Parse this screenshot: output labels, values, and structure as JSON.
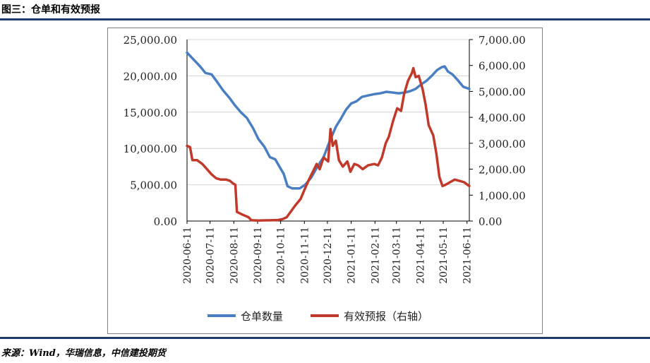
{
  "figure": {
    "title": "图三：仓单和有效预报",
    "source": "来源：Wind，华瑞信息，中信建投期货"
  },
  "colors": {
    "series1": "#4a7ec2",
    "series2": "#c0392b",
    "rule": "#1f3b6e"
  },
  "chart_data": {
    "type": "line",
    "title": "",
    "left_axis": {
      "ylim": [
        0,
        25000
      ],
      "ticks": [
        "0.00",
        "5,000.00",
        "10,000.00",
        "15,000.00",
        "20,000.00",
        "25,000.00"
      ]
    },
    "right_axis": {
      "ylim": [
        0,
        7000
      ],
      "ticks": [
        "0.00",
        "1,000.00",
        "2,000.00",
        "3,000.00",
        "4,000.00",
        "5,000.00",
        "6,000.00",
        "7,000.00"
      ]
    },
    "x_range": [
      "2020-06-11",
      "2021-06-14"
    ],
    "x_ticks": [
      "2020-06-11",
      "2020-07-11",
      "2020-08-11",
      "2020-09-11",
      "2020-10-11",
      "2020-11-11",
      "2020-12-11",
      "2021-01-11",
      "2021-02-11",
      "2021-03-11",
      "2021-04-11",
      "2021-05-11",
      "2021-06-11"
    ],
    "grid": true,
    "legend_position": "bottom",
    "series": [
      {
        "name": "仓单数量",
        "axis": "left",
        "points": [
          [
            "2020-06-11",
            23200
          ],
          [
            "2020-06-20",
            22200
          ],
          [
            "2020-06-28",
            21300
          ],
          [
            "2020-07-05",
            20400
          ],
          [
            "2020-07-13",
            20200
          ],
          [
            "2020-07-20",
            19200
          ],
          [
            "2020-07-28",
            18000
          ],
          [
            "2020-08-05",
            17000
          ],
          [
            "2020-08-12",
            16000
          ],
          [
            "2020-08-20",
            15000
          ],
          [
            "2020-08-28",
            14200
          ],
          [
            "2020-09-05",
            12800
          ],
          [
            "2020-09-12",
            11300
          ],
          [
            "2020-09-20",
            10200
          ],
          [
            "2020-09-27",
            8800
          ],
          [
            "2020-10-04",
            8500
          ],
          [
            "2020-10-10",
            7400
          ],
          [
            "2020-10-15",
            6500
          ],
          [
            "2020-10-20",
            4800
          ],
          [
            "2020-10-26",
            4500
          ],
          [
            "2020-11-05",
            4500
          ],
          [
            "2020-11-12",
            5000
          ],
          [
            "2020-11-20",
            6000
          ],
          [
            "2020-11-28",
            7500
          ],
          [
            "2020-12-06",
            8800
          ],
          [
            "2020-12-14",
            11000
          ],
          [
            "2020-12-22",
            13000
          ],
          [
            "2020-12-28",
            14000
          ],
          [
            "2021-01-04",
            15300
          ],
          [
            "2021-01-11",
            16200
          ],
          [
            "2021-01-18",
            16500
          ],
          [
            "2021-01-25",
            17100
          ],
          [
            "2021-02-02",
            17300
          ],
          [
            "2021-02-11",
            17500
          ],
          [
            "2021-02-18",
            17600
          ],
          [
            "2021-02-26",
            17800
          ],
          [
            "2021-03-06",
            17700
          ],
          [
            "2021-03-14",
            17600
          ],
          [
            "2021-03-22",
            17700
          ],
          [
            "2021-03-29",
            17900
          ],
          [
            "2021-04-05",
            18200
          ],
          [
            "2021-04-12",
            18800
          ],
          [
            "2021-04-19",
            19300
          ],
          [
            "2021-04-26",
            20000
          ],
          [
            "2021-05-03",
            20800
          ],
          [
            "2021-05-09",
            21200
          ],
          [
            "2021-05-13",
            21300
          ],
          [
            "2021-05-17",
            20600
          ],
          [
            "2021-05-23",
            20200
          ],
          [
            "2021-05-30",
            19400
          ],
          [
            "2021-06-06",
            18500
          ],
          [
            "2021-06-14",
            18200
          ]
        ]
      },
      {
        "name": "有效预报（右轴）",
        "axis": "right",
        "points": [
          [
            "2020-06-11",
            2900
          ],
          [
            "2020-06-15",
            2850
          ],
          [
            "2020-06-18",
            2350
          ],
          [
            "2020-06-24",
            2350
          ],
          [
            "2020-07-01",
            2200
          ],
          [
            "2020-07-07",
            2000
          ],
          [
            "2020-07-13",
            1800
          ],
          [
            "2020-07-19",
            1650
          ],
          [
            "2020-07-25",
            1600
          ],
          [
            "2020-08-01",
            1600
          ],
          [
            "2020-08-06",
            1550
          ],
          [
            "2020-08-10",
            1450
          ],
          [
            "2020-08-13",
            1400
          ],
          [
            "2020-08-15",
            350
          ],
          [
            "2020-08-22",
            250
          ],
          [
            "2020-08-30",
            150
          ],
          [
            "2020-09-03",
            30
          ],
          [
            "2020-09-12",
            20
          ],
          [
            "2020-09-28",
            30
          ],
          [
            "2020-10-08",
            40
          ],
          [
            "2020-10-14",
            80
          ],
          [
            "2020-10-19",
            150
          ],
          [
            "2020-10-24",
            350
          ],
          [
            "2020-10-30",
            600
          ],
          [
            "2020-11-06",
            850
          ],
          [
            "2020-11-11",
            1200
          ],
          [
            "2020-11-17",
            1600
          ],
          [
            "2020-11-22",
            1900
          ],
          [
            "2020-11-27",
            2200
          ],
          [
            "2020-12-01",
            2000
          ],
          [
            "2020-12-06",
            2450
          ],
          [
            "2020-12-12",
            2300
          ],
          [
            "2020-12-15",
            3550
          ],
          [
            "2020-12-18",
            2900
          ],
          [
            "2020-12-22",
            3100
          ],
          [
            "2020-12-26",
            2350
          ],
          [
            "2020-12-31",
            2100
          ],
          [
            "2021-01-06",
            2300
          ],
          [
            "2021-01-10",
            1900
          ],
          [
            "2021-01-15",
            2200
          ],
          [
            "2021-01-20",
            2150
          ],
          [
            "2021-01-26",
            2000
          ],
          [
            "2021-02-02",
            2150
          ],
          [
            "2021-02-10",
            2200
          ],
          [
            "2021-02-15",
            2150
          ],
          [
            "2021-02-20",
            2450
          ],
          [
            "2021-02-25",
            3000
          ],
          [
            "2021-03-01",
            3250
          ],
          [
            "2021-03-07",
            3900
          ],
          [
            "2021-03-12",
            4350
          ],
          [
            "2021-03-17",
            4250
          ],
          [
            "2021-03-21",
            4900
          ],
          [
            "2021-03-26",
            5400
          ],
          [
            "2021-03-31",
            5700
          ],
          [
            "2021-04-02",
            5900
          ],
          [
            "2021-04-05",
            5550
          ],
          [
            "2021-04-09",
            5600
          ],
          [
            "2021-04-14",
            5100
          ],
          [
            "2021-04-18",
            4500
          ],
          [
            "2021-04-22",
            3700
          ],
          [
            "2021-04-28",
            3300
          ],
          [
            "2021-05-02",
            2600
          ],
          [
            "2021-05-06",
            1700
          ],
          [
            "2021-05-10",
            1350
          ],
          [
            "2021-05-14",
            1400
          ],
          [
            "2021-05-20",
            1500
          ],
          [
            "2021-05-26",
            1600
          ],
          [
            "2021-06-01",
            1550
          ],
          [
            "2021-06-07",
            1500
          ],
          [
            "2021-06-14",
            1350
          ]
        ]
      }
    ]
  }
}
